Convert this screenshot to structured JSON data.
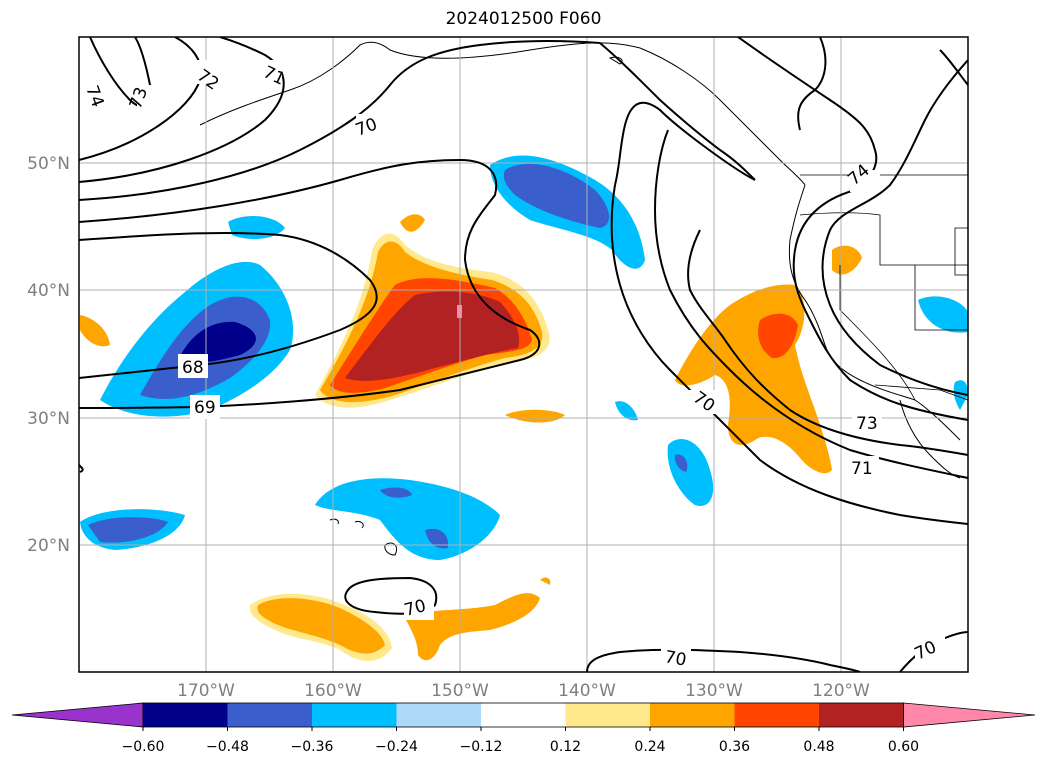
{
  "title": "2024012500 F060",
  "map": {
    "lat_labels": [
      "50°N",
      "40°N",
      "30°N",
      "20°N"
    ],
    "lon_labels": [
      "170°W",
      "160°W",
      "150°W",
      "140°W",
      "130°W",
      "120°W"
    ],
    "contour_labels": [
      "74",
      "73",
      "72",
      "71",
      "70",
      "68",
      "69",
      "70",
      "70",
      "73",
      "71",
      "74",
      "70",
      "70"
    ]
  },
  "colorbar": {
    "labels": [
      "−0.60",
      "−0.48",
      "−0.36",
      "−0.24",
      "−0.12",
      "0.12",
      "0.24",
      "0.36",
      "0.48",
      "0.60"
    ],
    "colors": [
      "#9933cc",
      "#00008b",
      "#3a5fcd",
      "#00bfff",
      "#add8f8",
      "#ffffff",
      "#ffe98c",
      "#ffa500",
      "#ff4500",
      "#b22222",
      "#ff88aa"
    ]
  }
}
